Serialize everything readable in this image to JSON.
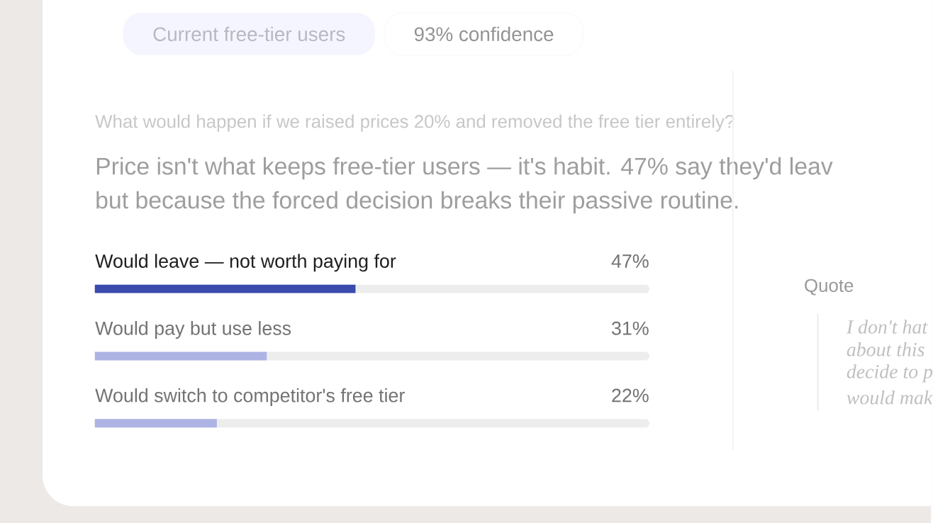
{
  "chart_data": {
    "type": "bar",
    "orientation": "horizontal",
    "title": "What would happen if we raised prices 20% and removed the free tier entirely?",
    "subtitle": "Price isn't what keeps free-tier users — it's habit. 47% say they'd leav",
    "categories": [
      "Would leave — not worth paying for",
      "Would pay but use less",
      "Would switch to competitor's free tier"
    ],
    "values": [
      47,
      31,
      22
    ],
    "colors": [
      "#3a4bad",
      "#adb3e3",
      "#adb3e3"
    ],
    "value_labels": [
      "47%",
      "31%",
      "22%"
    ],
    "xlim": [
      0,
      100
    ],
    "annotations": [
      "Current free-tier users",
      "93% confidence",
      "but because the forced decision breaks their passive routine.",
      "Quote",
      "I don't hat",
      "about this",
      "decide to p",
      "would mak"
    ]
  }
}
